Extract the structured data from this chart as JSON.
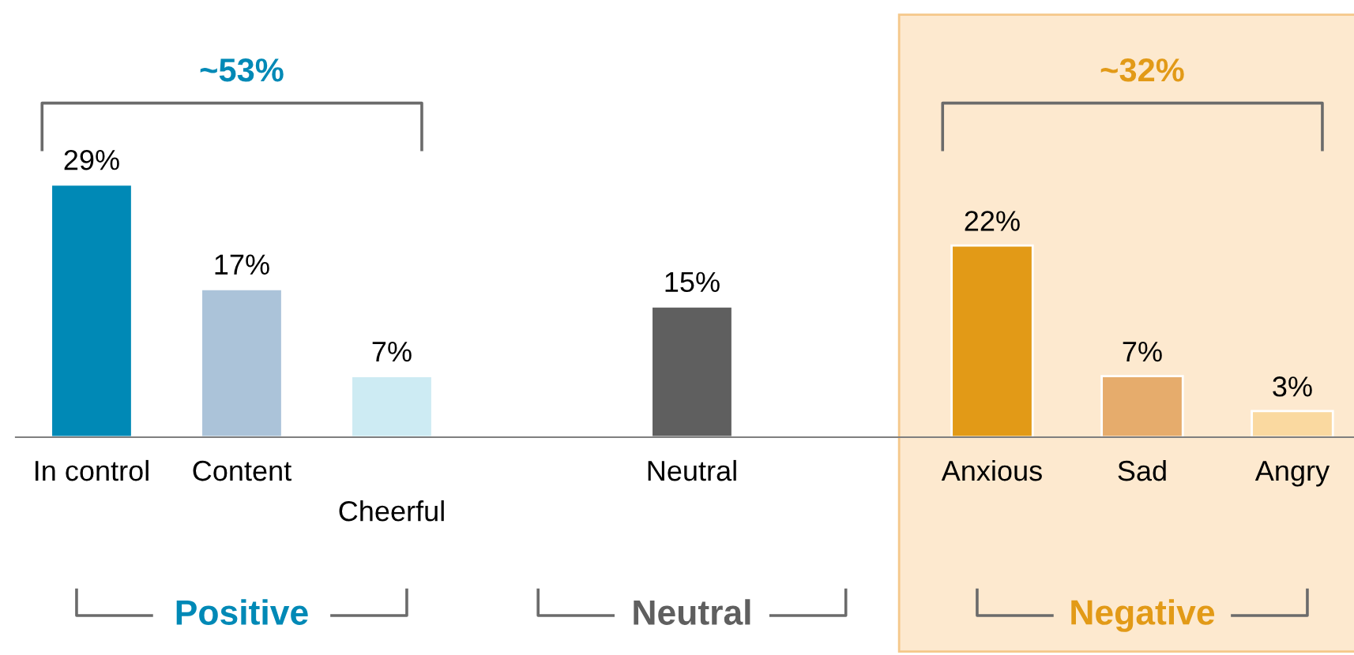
{
  "chart_data": {
    "type": "bar",
    "categories": [
      "In control",
      "Content",
      "Cheerful",
      null,
      "Neutral",
      null,
      "Anxious",
      "Sad",
      "Angry"
    ],
    "values": [
      29,
      17,
      7,
      null,
      15,
      null,
      22,
      7,
      3
    ],
    "colors": [
      "#0089b6",
      "#abc3d9",
      "#cdebf3",
      "#ffffff",
      "#5f5f5f",
      "#ffffff",
      "#e29a17",
      "#e6ac6c",
      "#fad9a0"
    ],
    "value_labels": [
      "29%",
      "17%",
      "7%",
      null,
      "15%",
      null,
      "22%",
      "7%",
      "3%"
    ],
    "bands": [
      {
        "axis": "x",
        "from": "Anxious",
        "to": "Angry",
        "color": "#fde9cf"
      }
    ],
    "annotations": [
      "~53%",
      "~32%",
      "Positive",
      "Neutral",
      "Negative"
    ]
  }
}
